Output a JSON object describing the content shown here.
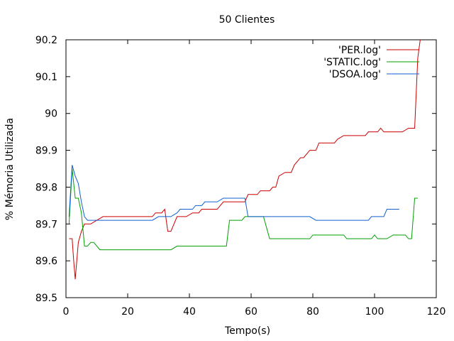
{
  "chart_data": {
    "type": "line",
    "title": "50 Clientes",
    "xlabel": "Tempo(s)",
    "ylabel": "% Mémoria Utilizada",
    "xlim": [
      0,
      120
    ],
    "ylim": [
      89.5,
      90.2
    ],
    "xticks": [
      "0",
      "20",
      "40",
      "60",
      "80",
      "100",
      "120"
    ],
    "yticks": [
      "89.5",
      "89.6",
      "89.7",
      "89.8",
      "89.9",
      "90",
      "90.1",
      "90.2"
    ],
    "xtick_values": [
      0,
      20,
      40,
      60,
      80,
      100,
      120
    ],
    "ytick_values": [
      89.5,
      89.6,
      89.7,
      89.8,
      89.9,
      90.0,
      90.1,
      90.2
    ],
    "grid": false,
    "legend_position": "top-right",
    "series": [
      {
        "name": "'PER.log'",
        "color": "#cc0000",
        "points": [
          [
            1,
            89.66
          ],
          [
            2,
            89.66
          ],
          [
            2.5,
            89.6
          ],
          [
            3,
            89.55
          ],
          [
            4,
            89.65
          ],
          [
            5,
            89.68
          ],
          [
            6,
            89.7
          ],
          [
            8,
            89.7
          ],
          [
            10,
            89.71
          ],
          [
            12,
            89.72
          ],
          [
            28,
            89.72
          ],
          [
            29,
            89.73
          ],
          [
            31,
            89.73
          ],
          [
            32,
            89.74
          ],
          [
            33,
            89.68
          ],
          [
            34,
            89.68
          ],
          [
            36,
            89.72
          ],
          [
            39,
            89.72
          ],
          [
            41,
            89.73
          ],
          [
            43,
            89.73
          ],
          [
            44,
            89.74
          ],
          [
            49,
            89.74
          ],
          [
            51,
            89.76
          ],
          [
            58,
            89.76
          ],
          [
            59,
            89.78
          ],
          [
            62,
            89.78
          ],
          [
            63,
            89.79
          ],
          [
            66,
            89.79
          ],
          [
            67,
            89.8
          ],
          [
            68,
            89.8
          ],
          [
            69,
            89.83
          ],
          [
            71,
            89.84
          ],
          [
            73,
            89.84
          ],
          [
            74,
            89.86
          ],
          [
            76,
            89.88
          ],
          [
            77,
            89.88
          ],
          [
            79,
            89.9
          ],
          [
            81,
            89.9
          ],
          [
            82,
            89.92
          ],
          [
            87,
            89.92
          ],
          [
            88,
            89.93
          ],
          [
            90,
            89.94
          ],
          [
            97,
            89.94
          ],
          [
            98,
            89.95
          ],
          [
            101,
            89.95
          ],
          [
            102,
            89.96
          ],
          [
            103,
            89.95
          ],
          [
            109,
            89.95
          ],
          [
            111,
            89.96
          ],
          [
            113,
            89.96
          ],
          [
            114,
            90.15
          ],
          [
            114.8,
            90.2
          ]
        ]
      },
      {
        "name": "'STATIC.log'",
        "color": "#00a000",
        "points": [
          [
            1,
            89.7
          ],
          [
            2,
            89.85
          ],
          [
            3,
            89.77
          ],
          [
            4,
            89.77
          ],
          [
            5,
            89.73
          ],
          [
            6,
            89.64
          ],
          [
            7,
            89.64
          ],
          [
            8,
            89.65
          ],
          [
            9,
            89.65
          ],
          [
            11,
            89.63
          ],
          [
            34,
            89.63
          ],
          [
            36,
            89.64
          ],
          [
            52,
            89.64
          ],
          [
            53,
            89.71
          ],
          [
            57,
            89.71
          ],
          [
            58,
            89.72
          ],
          [
            64,
            89.72
          ],
          [
            66,
            89.66
          ],
          [
            79,
            89.66
          ],
          [
            80,
            89.67
          ],
          [
            90,
            89.67
          ],
          [
            91,
            89.66
          ],
          [
            99,
            89.66
          ],
          [
            100,
            89.67
          ],
          [
            101,
            89.66
          ],
          [
            104,
            89.66
          ],
          [
            106,
            89.67
          ],
          [
            110,
            89.67
          ],
          [
            111,
            89.66
          ],
          [
            112,
            89.66
          ],
          [
            113,
            89.77
          ],
          [
            114,
            89.77
          ]
        ]
      },
      {
        "name": "'DSOA.log'",
        "color": "#1060d0",
        "points": [
          [
            1,
            89.72
          ],
          [
            2,
            89.86
          ],
          [
            3,
            89.83
          ],
          [
            4,
            89.81
          ],
          [
            5,
            89.76
          ],
          [
            6,
            89.72
          ],
          [
            7,
            89.71
          ],
          [
            28,
            89.71
          ],
          [
            30,
            89.72
          ],
          [
            34,
            89.72
          ],
          [
            36,
            89.73
          ],
          [
            37,
            89.74
          ],
          [
            41,
            89.74
          ],
          [
            42,
            89.75
          ],
          [
            44,
            89.75
          ],
          [
            45,
            89.76
          ],
          [
            49,
            89.76
          ],
          [
            51,
            89.77
          ],
          [
            58,
            89.77
          ],
          [
            59,
            89.72
          ],
          [
            79,
            89.72
          ],
          [
            81,
            89.71
          ],
          [
            98,
            89.71
          ],
          [
            99,
            89.72
          ],
          [
            103,
            89.72
          ],
          [
            104,
            89.74
          ],
          [
            108,
            89.74
          ]
        ]
      }
    ]
  }
}
